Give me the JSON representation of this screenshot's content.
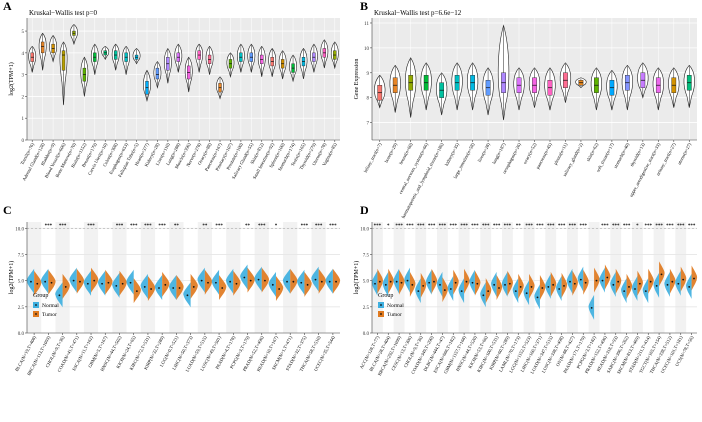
{
  "chart_data": [
    {
      "panel_label": "A",
      "type": "violin",
      "title": "Kruskal−Wallis test p=0",
      "ylabel": "log2(TPM+1)",
      "ylim": [
        0,
        5.6
      ],
      "yticks": [
        0,
        1,
        2,
        3,
        4,
        5
      ],
      "categories": [
        "Tonsil(n=76)",
        "Adrenal Gland(n=128)",
        "Bladder(n=9)",
        "Blood Vessel(n=606)",
        "Bone Marrow(n=70)",
        "Brain(n=1152)",
        "Breast(n=179)",
        "Cervix Uteri(n=10)",
        "Colon(n=308)",
        "Esophagus(n=653)",
        "Fallopian Tube(n=5)",
        "Heart(n=377)",
        "Kidney(n=28)",
        "Liver(n=110)",
        "Lung(n=288)",
        "Muscle(n=396)",
        "Nerve(n=278)",
        "Ovary(n=88)",
        "Pancreas(n=167)",
        "Pituitary(n=107)",
        "Prostate(n=100)",
        "Salivary Gland(n=55)",
        "Skin(n=812)",
        "Small Intestine(n=92)",
        "Spleen(n=100)",
        "Stomach(n=174)",
        "Testis(n=165)",
        "Thyroid(n=279)",
        "Uterus(n=78)",
        "Vagina(n=85)"
      ],
      "medians": [
        3.8,
        4.3,
        4.2,
        3.9,
        4.9,
        3.0,
        3.8,
        4.0,
        3.9,
        3.8,
        3.8,
        2.4,
        3.0,
        3.5,
        3.8,
        3.1,
        3.9,
        3.7,
        2.4,
        3.5,
        3.8,
        3.8,
        3.7,
        3.6,
        3.5,
        3.3,
        3.6,
        3.8,
        4.0,
        3.9
      ],
      "q1": [
        3.6,
        4.0,
        4.0,
        3.2,
        4.8,
        2.7,
        3.6,
        3.9,
        3.7,
        3.6,
        3.7,
        2.1,
        2.8,
        3.2,
        3.6,
        2.8,
        3.7,
        3.5,
        2.2,
        3.3,
        3.6,
        3.6,
        3.5,
        3.4,
        3.3,
        3.1,
        3.4,
        3.6,
        3.8,
        3.7
      ],
      "q3": [
        4.0,
        4.5,
        4.4,
        4.1,
        5.0,
        3.3,
        4.0,
        4.1,
        4.1,
        4.0,
        3.9,
        2.7,
        3.3,
        3.8,
        4.0,
        3.4,
        4.1,
        3.9,
        2.6,
        3.7,
        4.0,
        4.0,
        3.9,
        3.8,
        3.7,
        3.5,
        3.8,
        4.0,
        4.2,
        4.1
      ],
      "mins": [
        3.1,
        3.2,
        3.6,
        1.6,
        4.4,
        2.0,
        3.0,
        3.7,
        3.2,
        3.0,
        3.5,
        1.8,
        2.4,
        2.6,
        3.1,
        2.2,
        3.1,
        3.0,
        1.9,
        2.9,
        3.1,
        3.1,
        2.9,
        2.9,
        2.8,
        2.7,
        2.8,
        3.1,
        3.3,
        3.3
      ],
      "maxs": [
        4.3,
        4.9,
        4.8,
        4.5,
        5.3,
        3.8,
        4.4,
        4.3,
        4.4,
        4.3,
        4.2,
        3.2,
        3.6,
        4.2,
        4.4,
        3.8,
        4.4,
        4.3,
        2.9,
        4.0,
        4.4,
        4.4,
        4.3,
        4.2,
        4.1,
        3.9,
        4.2,
        4.4,
        4.6,
        4.5
      ],
      "colors": [
        "#f8766d",
        "#e88526",
        "#d39200",
        "#b79f00",
        "#93aa00",
        "#5eb300",
        "#00ba38",
        "#00bf74",
        "#00c19f",
        "#00bfc4",
        "#00b9e3",
        "#00adfa",
        "#619cff",
        "#ae87ff",
        "#db72fb",
        "#f564e3",
        "#ff61c3",
        "#ff6c91",
        "#e88526",
        "#5eb300",
        "#00bfc4",
        "#619cff",
        "#f564e3",
        "#f8766d",
        "#d39200",
        "#00ba38",
        "#00b9e3",
        "#ae87ff",
        "#ff61c3",
        "#93aa00"
      ]
    },
    {
      "panel_label": "B",
      "type": "violin",
      "title": "Kruskal−Wallis test p=6.6e−12",
      "ylabel": "Gene Expression",
      "ylim": [
        6.3,
        11.2
      ],
      "yticks": [
        7,
        8,
        9,
        10,
        11
      ],
      "categories": [
        "biliary_tract(n=7)",
        "bone(n=29)",
        "breast(n=60)",
        "central_nervous_system(n=66)",
        "haematopoietic_and_lymphoid_tissue(n=186)",
        "kidney(n=35)",
        "large_intestine(n=58)",
        "liver(n=28)",
        "lung(n=187)",
        "oesophagus(n=26)",
        "ovary(n=52)",
        "pancreas(n=45)",
        "pleura(n=11)",
        "salivary_gland(n=2)",
        "skin(n=62)",
        "soft_tissue(n=17)",
        "stomach(n=40)",
        "thyroid(n=13)",
        "upper_aerodigestive_tract(n=33)",
        "urinary_tract(n=27)",
        "uterus(n=27)"
      ],
      "medians": [
        8.2,
        8.5,
        8.6,
        8.6,
        8.3,
        8.6,
        8.6,
        8.4,
        8.6,
        8.5,
        8.5,
        8.4,
        8.7,
        8.6,
        8.5,
        8.4,
        8.6,
        8.7,
        8.5,
        8.5,
        8.6
      ],
      "q1": [
        7.9,
        8.2,
        8.3,
        8.3,
        8.0,
        8.3,
        8.3,
        8.1,
        8.2,
        8.2,
        8.2,
        8.1,
        8.4,
        8.5,
        8.2,
        8.1,
        8.3,
        8.4,
        8.2,
        8.2,
        8.3
      ],
      "q3": [
        8.5,
        8.8,
        8.9,
        8.9,
        8.6,
        8.9,
        8.9,
        8.7,
        9.0,
        8.8,
        8.8,
        8.7,
        9.0,
        8.7,
        8.8,
        8.7,
        8.9,
        9.0,
        8.8,
        8.8,
        8.9
      ],
      "mins": [
        7.6,
        7.4,
        7.2,
        7.5,
        7.3,
        7.5,
        7.5,
        7.3,
        7.1,
        7.5,
        7.6,
        7.5,
        7.8,
        8.4,
        7.5,
        7.5,
        7.5,
        8.0,
        7.5,
        7.6,
        7.6
      ],
      "maxs": [
        8.9,
        9.3,
        9.6,
        9.4,
        9.0,
        9.4,
        9.4,
        9.2,
        10.9,
        9.2,
        9.2,
        9.2,
        9.4,
        8.8,
        9.2,
        9.1,
        9.3,
        9.4,
        9.2,
        9.2,
        9.3
      ],
      "colors": [
        "#f8766d",
        "#e88526",
        "#93aa00",
        "#00ba38",
        "#00c19f",
        "#00bfc4",
        "#00b9e3",
        "#619cff",
        "#ae87ff",
        "#db72fb",
        "#f564e3",
        "#ff61c3",
        "#ff6c91",
        "#e7861b",
        "#5eb300",
        "#00a9ff",
        "#8494ff",
        "#c77cff",
        "#ed68ed",
        "#d39200",
        "#00bf7d"
      ]
    },
    {
      "panel_label": "C",
      "type": "split-violin",
      "ylabel": "log2(TPM+1)",
      "ylim": [
        0,
        10.6
      ],
      "yticks": [
        0.0,
        2.5,
        5.0,
        7.5,
        10.0
      ],
      "categories": [
        "BLCA(N=19,T=408)",
        "BRCA(N=113,T=1093)",
        "CHOL(N=9,T=36)",
        "COAD(N=41,T=471)",
        "ESCA(N=11,T=162)",
        "GBM(N=5,T=167)",
        "HNSC(N=44,T=502)",
        "KICH(N=24,T=65)",
        "KIRC(N=72,T=531)",
        "KIRP(N=32,T=289)",
        "LGG(N=0,T=521)",
        "LIHC(N=50,T=373)",
        "LUAD(N=59,T=515)",
        "LUSC(N=49,T=501)",
        "PAAD(N=4,T=178)",
        "PCPG(N=3,T=179)",
        "PRAD(N=52,T=496)",
        "READ(N=10,T=167)",
        "SKCM(N=1,T=471)",
        "STAD(N=32,T=375)",
        "THCA(N=58,T=510)",
        "UCEC(N=35,T=544)"
      ],
      "significance": [
        "",
        "***",
        "***",
        "",
        "***",
        "",
        "***",
        "***",
        "***",
        "***",
        "**",
        "",
        "**",
        "***",
        "",
        "**",
        "***",
        "*",
        "",
        "***",
        "***",
        "***"
      ],
      "series": [
        {
          "name": "Normal",
          "color": "#3fb0e0",
          "values": [
            4.9,
            4.9,
            3.6,
            5.0,
            4.7,
            4.7,
            4.5,
            4.8,
            4.4,
            4.3,
            4.3,
            3.6,
            5.0,
            4.8,
            4.9,
            5.3,
            5.1,
            4.6,
            4.9,
            4.8,
            5.1,
            4.9
          ]
        },
        {
          "name": "Tumor",
          "color": "#e07a1f",
          "values": [
            4.7,
            4.8,
            4.4,
            4.9,
            5.0,
            4.8,
            4.7,
            4.0,
            4.2,
            4.6,
            4.3,
            4.4,
            4.8,
            4.3,
            4.7,
            5.0,
            5.0,
            4.2,
            4.9,
            4.6,
            4.9,
            4.9
          ]
        }
      ],
      "legend": {
        "title": "Group",
        "entries": [
          "Normal",
          "Tumor"
        ],
        "position": "bottom-left"
      }
    },
    {
      "panel_label": "D",
      "type": "split-violin",
      "ylabel": "log2(TPM+1)",
      "ylim": [
        0,
        10.6
      ],
      "yticks": [
        0.0,
        2.5,
        5.0,
        7.5,
        10.0
      ],
      "categories": [
        "ACC(N=128,T=77)",
        "BLCA(N=28,T=404)",
        "BRCA(N=292,T=1099)",
        "CESC(N=13,T=306)",
        "CHOL(N=9,T=36)",
        "COAD(N=349,T=290)",
        "DLBC(N=444,T=47)",
        "ESCA(N=666,T=182)",
        "GBM(N=1157,T=168)",
        "HNSC(N=44,T=520)",
        "KICH(N=53,T=66)",
        "KIRC(N=100,T=531)",
        "KIRP(N=60,T=289)",
        "LAML(N=70,T=173)",
        "LGG(N=1152,T=523)",
        "LIHC(N=160,T=371)",
        "LUAD(N=347,T=515)",
        "LUSC(N=338,T=498)",
        "OV(N=88,T=427)",
        "PAAD(N=171,T=179)",
        "PCPG(N=3,T=182)",
        "PRAD(N=152,T=496)",
        "READ(N=318,T=93)",
        "SARC(N=396,T=262)",
        "SKCM(N=813,T=469)",
        "STAD(N=211,T=414)",
        "TGCT(N=165,T=154)",
        "THCA(N=338,T=512)",
        "UCEC(N=101,T=181)",
        "UCS(N=78,T=56)"
      ],
      "significance": [
        "***",
        "*",
        "***",
        "***",
        "***",
        "***",
        "***",
        "***",
        "***",
        "***",
        "***",
        "***",
        "***",
        "**",
        "***",
        "***",
        "***",
        "***",
        "***",
        "***",
        "",
        "***",
        "***",
        "***",
        "*",
        "***",
        "***",
        "***",
        "***",
        "***"
      ],
      "series": [
        {
          "name": "Normal",
          "color": "#3fb0e0",
          "values": [
            4.7,
            4.6,
            4.9,
            5.0,
            4.0,
            4.8,
            4.6,
            4.2,
            4.0,
            4.8,
            3.6,
            4.6,
            4.6,
            4.0,
            3.8,
            3.4,
            4.4,
            4.2,
            4.9,
            5.1,
            2.4,
            5.0,
            4.6,
            4.0,
            4.2,
            4.0,
            4.5,
            4.6,
            4.7,
            4.4
          ]
        },
        {
          "name": "Tumor",
          "color": "#e07a1f",
          "values": [
            4.9,
            4.9,
            4.8,
            4.6,
            4.5,
            4.9,
            4.1,
            4.8,
            4.9,
            4.7,
            4.0,
            4.3,
            4.7,
            4.4,
            4.4,
            4.3,
            4.6,
            4.5,
            4.7,
            4.8,
            5.0,
            5.3,
            4.9,
            4.4,
            4.7,
            4.9,
            5.6,
            4.9,
            5.1,
            5.2
          ]
        }
      ],
      "legend": {
        "title": "Group",
        "entries": [
          "Normal",
          "Tumor"
        ],
        "position": "bottom-left"
      }
    }
  ]
}
